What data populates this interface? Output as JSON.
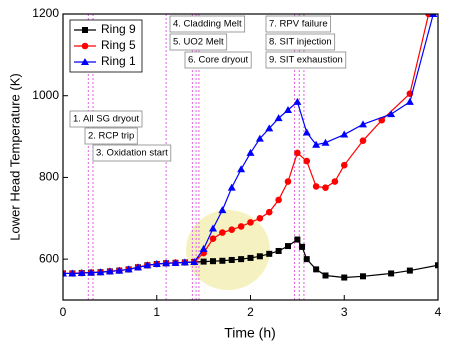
{
  "chart_data": {
    "type": "line",
    "xlabel": "Time (h)",
    "ylabel": "Lower Head Temperature (K)",
    "xlim": [
      0,
      4
    ],
    "xticks": [
      0,
      1,
      2,
      3,
      4
    ],
    "ylim": [
      500,
      1200
    ],
    "yticks": [
      600,
      800,
      1000,
      1200
    ],
    "legend": "upper left",
    "series": [
      {
        "name": "Ring 9",
        "color": "#000000",
        "marker": "square",
        "x": [
          0,
          0.1,
          0.2,
          0.3,
          0.4,
          0.5,
          0.6,
          0.7,
          0.8,
          0.9,
          1.0,
          1.1,
          1.2,
          1.3,
          1.4,
          1.5,
          1.6,
          1.7,
          1.8,
          1.9,
          2.0,
          2.1,
          2.2,
          2.3,
          2.4,
          2.5,
          2.55,
          2.6,
          2.7,
          2.8,
          3.0,
          3.2,
          3.5,
          3.7,
          4.0
        ],
        "values": [
          565,
          565,
          566,
          567,
          568,
          570,
          572,
          575,
          580,
          585,
          588,
          590,
          591,
          592,
          593,
          594,
          595,
          596,
          598,
          600,
          603,
          607,
          613,
          620,
          632,
          648,
          630,
          600,
          575,
          560,
          555,
          558,
          565,
          572,
          585
        ]
      },
      {
        "name": "Ring 5",
        "color": "#ff0000",
        "marker": "circle",
        "x": [
          0,
          0.1,
          0.2,
          0.3,
          0.4,
          0.5,
          0.6,
          0.7,
          0.8,
          0.9,
          1.0,
          1.1,
          1.2,
          1.3,
          1.4,
          1.5,
          1.6,
          1.7,
          1.8,
          1.9,
          2.0,
          2.1,
          2.2,
          2.3,
          2.4,
          2.5,
          2.6,
          2.7,
          2.8,
          2.9,
          3.0,
          3.2,
          3.4,
          3.7,
          3.9
        ],
        "values": [
          565,
          565,
          566,
          567,
          568,
          570,
          572,
          575,
          580,
          585,
          588,
          590,
          591,
          592,
          593,
          615,
          650,
          665,
          672,
          680,
          690,
          700,
          715,
          745,
          790,
          860,
          840,
          778,
          775,
          790,
          830,
          890,
          940,
          1005,
          1200
        ]
      },
      {
        "name": "Ring 1",
        "color": "#0000ff",
        "marker": "triangle",
        "x": [
          0,
          0.1,
          0.2,
          0.3,
          0.4,
          0.5,
          0.6,
          0.7,
          0.8,
          0.9,
          1.0,
          1.1,
          1.2,
          1.3,
          1.4,
          1.5,
          1.6,
          1.7,
          1.8,
          1.9,
          2.0,
          2.1,
          2.2,
          2.3,
          2.4,
          2.5,
          2.6,
          2.7,
          2.8,
          3.0,
          3.2,
          3.5,
          3.7,
          3.95
        ],
        "values": [
          565,
          565,
          566,
          567,
          568,
          570,
          572,
          575,
          580,
          585,
          588,
          590,
          591,
          592,
          593,
          625,
          675,
          720,
          775,
          820,
          860,
          895,
          920,
          945,
          965,
          985,
          910,
          880,
          885,
          905,
          930,
          955,
          985,
          1200
        ]
      }
    ],
    "events": [
      {
        "x": 0.27,
        "label": "1. All SG dryout"
      },
      {
        "x": 0.32,
        "label": "2. RCP trip"
      },
      {
        "x": 1.1,
        "label": "3. Oxidation start"
      },
      {
        "x": 1.38,
        "label": "4. Cladding Melt"
      },
      {
        "x": 1.42,
        "label": "5. UO2 Melt"
      },
      {
        "x": 1.45,
        "label": "6. Core dryout"
      },
      {
        "x": 2.47,
        "label": "7. RPV failure"
      },
      {
        "x": 2.52,
        "label": "8. SIT injection"
      },
      {
        "x": 2.57,
        "label": "9. SIT exhaustion"
      }
    ]
  }
}
